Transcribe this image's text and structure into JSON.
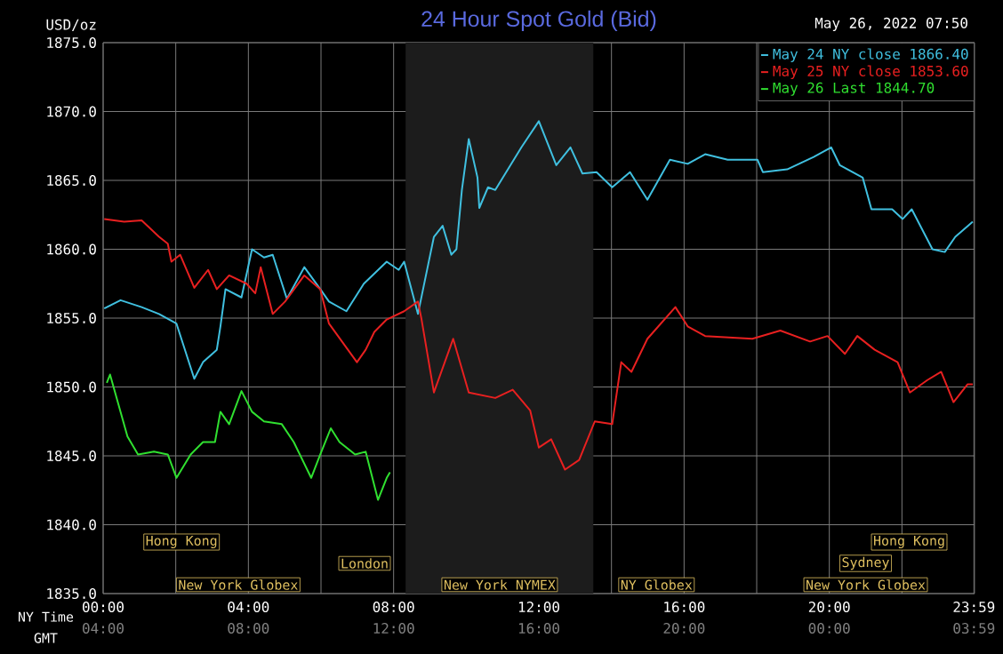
{
  "chart_data": {
    "type": "line",
    "title": "24 Hour Spot Gold (Bid)",
    "ylabel": "USD/oz",
    "xlabel": "NY Time",
    "x2label": "GMT",
    "annotations": [
      "May 26, 2022 07:50",
      "Hong Kong",
      "London",
      "New York Globex",
      "New York NYMEX",
      "NY Globex",
      "Hong Kong",
      "Sydney",
      "New York Globex"
    ],
    "xlim": [
      0,
      24
    ],
    "ylim": [
      1835,
      1875
    ],
    "xticks": [
      {
        "value": 0,
        "label": "00:00"
      },
      {
        "value": 2,
        "label": null
      },
      {
        "value": 4,
        "label": "04:00"
      },
      {
        "value": 6,
        "label": null
      },
      {
        "value": 8,
        "label": "08:00"
      },
      {
        "value": 10,
        "label": null
      },
      {
        "value": 12,
        "label": "12:00"
      },
      {
        "value": 14,
        "label": null
      },
      {
        "value": 16,
        "label": "16:00"
      },
      {
        "value": 18,
        "label": null
      },
      {
        "value": 20,
        "label": "20:00"
      },
      {
        "value": 22,
        "label": null
      },
      {
        "value": 23.983,
        "label": "23:59"
      }
    ],
    "x2lim": [
      "2022-05-26T04:00",
      "2022-05-27T04:00"
    ],
    "x2ticks": [
      {
        "value": "2022-05-26T04:00",
        "label": "04:00"
      },
      {
        "value": "2022-05-26T08:00",
        "label": "08:00"
      },
      {
        "value": "2022-05-26T12:00",
        "label": "12:00"
      },
      {
        "value": "2022-05-26T16:00",
        "label": "16:00"
      },
      {
        "value": "2022-05-26T20:00",
        "label": "20:00"
      },
      {
        "value": "2022-05-27T00:00",
        "label": "00:00"
      },
      {
        "value": "2022-05-27T03:59",
        "label": "03:59"
      }
    ],
    "yticks": [
      {
        "value": 1835,
        "label": "1835.0"
      },
      {
        "value": 1840,
        "label": "1840.0"
      },
      {
        "value": 1845,
        "label": "1845.0"
      },
      {
        "value": 1850,
        "label": "1850.0"
      },
      {
        "value": 1855,
        "label": "1855.0"
      },
      {
        "value": 1860,
        "label": "1860.0"
      },
      {
        "value": 1865,
        "label": "1865.0"
      },
      {
        "value": 1870,
        "label": "1870.0"
      },
      {
        "value": 1875,
        "label": "1875.0"
      }
    ],
    "grid": true,
    "legend": "top right",
    "bands": [
      {
        "axis": "x",
        "from": 8.33,
        "to": 13.5,
        "color": "#1c1c1c"
      }
    ],
    "series": [
      {
        "name": "May 24 NY close 1866.40",
        "color": "#40c0e0",
        "x": [
          0.03,
          0.48,
          1.06,
          1.54,
          2.02,
          2.51,
          2.75,
          3.13,
          3.23,
          3.37,
          3.81,
          4.1,
          4.43,
          4.67,
          5.06,
          5.54,
          5.98,
          6.22,
          6.7,
          7.18,
          7.81,
          8.14,
          8.29,
          8.67,
          9.11,
          9.35,
          9.59,
          9.73,
          9.88,
          10.07,
          10.31,
          10.36,
          10.6,
          10.8,
          11.52,
          12.0,
          12.48,
          12.87,
          13.2,
          13.59,
          14.02,
          14.51,
          14.99,
          15.61,
          16.1,
          16.58,
          17.2,
          18.02,
          18.17,
          18.84,
          19.57,
          20.05,
          20.29,
          20.92,
          21.16,
          21.73,
          22.02,
          22.27,
          22.84,
          23.18,
          23.47,
          23.95
        ],
        "values": [
          1855.7,
          1856.3,
          1855.8,
          1855.3,
          1854.6,
          1850.6,
          1851.8,
          1852.7,
          1854.4,
          1857.1,
          1856.5,
          1860.0,
          1859.4,
          1859.6,
          1856.4,
          1858.7,
          1857.1,
          1856.2,
          1855.5,
          1857.5,
          1859.1,
          1858.5,
          1859.1,
          1855.3,
          1860.9,
          1861.7,
          1859.6,
          1860.0,
          1864.3,
          1868.0,
          1865.2,
          1863.0,
          1864.5,
          1864.3,
          1867.4,
          1869.3,
          1866.1,
          1867.4,
          1865.5,
          1865.6,
          1864.5,
          1865.6,
          1863.6,
          1866.5,
          1866.2,
          1866.9,
          1866.5,
          1866.5,
          1865.6,
          1865.8,
          1866.7,
          1867.4,
          1866.1,
          1865.2,
          1862.9,
          1862.9,
          1862.2,
          1862.9,
          1860.0,
          1859.8,
          1860.9,
          1862.0
        ]
      },
      {
        "name": "May 25 NY close 1853.60",
        "color": "#e82020",
        "x": [
          0.03,
          0.58,
          1.06,
          1.54,
          1.78,
          1.88,
          2.12,
          2.51,
          2.89,
          3.13,
          3.47,
          3.95,
          4.19,
          4.34,
          4.67,
          5.01,
          5.54,
          5.98,
          6.22,
          6.99,
          7.23,
          7.47,
          7.81,
          8.29,
          8.67,
          8.77,
          9.11,
          9.64,
          10.07,
          10.8,
          11.28,
          11.76,
          12.0,
          12.34,
          12.72,
          13.11,
          13.54,
          14.02,
          14.27,
          14.55,
          14.99,
          15.76,
          16.1,
          16.58,
          17.88,
          18.65,
          19.47,
          19.95,
          20.43,
          20.77,
          21.25,
          21.88,
          22.22,
          22.7,
          23.08,
          23.42,
          23.81,
          23.95
        ],
        "values": [
          1862.2,
          1862.0,
          1862.1,
          1860.9,
          1860.4,
          1859.1,
          1859.6,
          1857.2,
          1858.5,
          1857.1,
          1858.1,
          1857.5,
          1856.8,
          1858.7,
          1855.3,
          1856.2,
          1858.1,
          1857.1,
          1854.6,
          1851.8,
          1852.7,
          1854.0,
          1854.9,
          1855.5,
          1856.2,
          1854.9,
          1849.6,
          1853.5,
          1849.6,
          1849.2,
          1849.8,
          1848.3,
          1845.6,
          1846.2,
          1844.0,
          1844.7,
          1847.5,
          1847.3,
          1851.8,
          1851.1,
          1853.5,
          1855.8,
          1854.4,
          1853.7,
          1853.5,
          1854.1,
          1853.3,
          1853.7,
          1852.4,
          1853.7,
          1852.7,
          1851.8,
          1849.6,
          1850.5,
          1851.1,
          1848.9,
          1850.2,
          1850.2
        ]
      },
      {
        "name": "May 26 Last 1844.70",
        "color": "#30e030",
        "x": [
          0.1,
          0.19,
          0.67,
          0.96,
          1.4,
          1.78,
          2.02,
          2.41,
          2.75,
          3.08,
          3.23,
          3.47,
          3.81,
          4.1,
          4.43,
          4.92,
          5.25,
          5.73,
          5.98,
          6.27,
          6.51,
          6.94,
          7.23,
          7.57,
          7.81,
          7.9
        ],
        "values": [
          1850.3,
          1850.9,
          1846.4,
          1845.1,
          1845.3,
          1845.1,
          1843.4,
          1845.1,
          1846.0,
          1846.0,
          1848.2,
          1847.3,
          1849.7,
          1848.2,
          1847.5,
          1847.3,
          1846.0,
          1843.4,
          1845.1,
          1847.0,
          1846.0,
          1845.1,
          1845.3,
          1841.8,
          1843.4,
          1843.8
        ]
      }
    ]
  }
}
